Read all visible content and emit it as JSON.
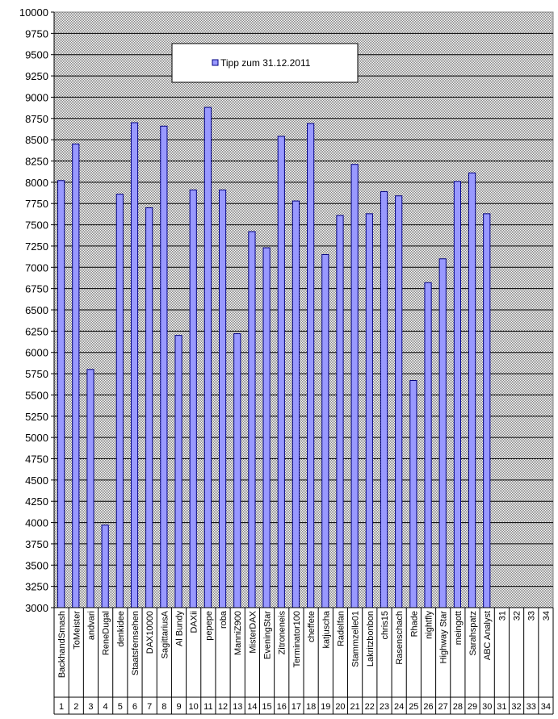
{
  "chart_data": {
    "type": "bar",
    "ylim": [
      3000,
      10000
    ],
    "ytick_step": 250,
    "grid": true,
    "legend_position": "top-center",
    "colors": {
      "bar_fill": "#9999ff",
      "bar_stroke": "#000080",
      "plot_bg": "#c0c0c0",
      "grid": "#000000"
    },
    "series": [
      {
        "name": "Tipp  zum 31.12.2011",
        "values": [
          8020,
          8450,
          5800,
          3970,
          7860,
          8700,
          7700,
          8660,
          6200,
          7910,
          8880,
          7910,
          6220,
          7420,
          7230,
          8540,
          7780,
          8690,
          7150,
          7610,
          8210,
          7630,
          7890,
          7840,
          5670,
          6820,
          7100,
          8010,
          8110,
          7630,
          null,
          null,
          null,
          null
        ]
      }
    ],
    "categories": [
      "BackhandSmash",
      "ToMeister",
      "andvari",
      "ReneDugal",
      "denkidee",
      "Staatsfernsehen",
      "DAX10000",
      "SagittariusA",
      "Al Bundy",
      "DAXii",
      "pepepe",
      "roba",
      "ManniZ900",
      "MisterDAX",
      "EveningStar",
      "Zitroneneis",
      "Terminator100",
      "cheffete",
      "katjuscha",
      "Radelfan",
      "Stammzelle01",
      "Lakritzbonbon",
      "chris15",
      "Rasenschach",
      "Rhade",
      "nightfly",
      "Highway Star",
      "meingott",
      "Sarahspatz",
      "ABC Analyst",
      "31",
      "32",
      "33",
      "34"
    ],
    "category_numbers": [
      "1",
      "2",
      "3",
      "4",
      "5",
      "6",
      "7",
      "8",
      "9",
      "10",
      "11",
      "12",
      "13",
      "14",
      "15",
      "16",
      "17",
      "18",
      "19",
      "20",
      "21",
      "22",
      "23",
      "24",
      "25",
      "26",
      "27",
      "28",
      "29",
      "30",
      "31",
      "32",
      "33",
      "34"
    ]
  }
}
